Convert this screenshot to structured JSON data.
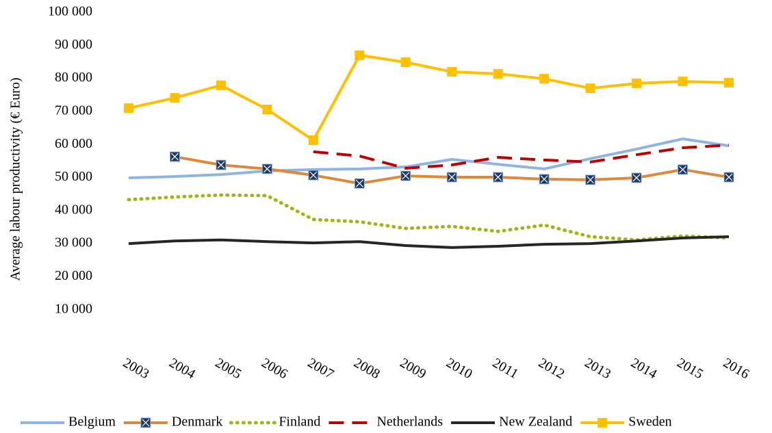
{
  "chart_data": {
    "type": "line",
    "y_label": "Average labour productivity (€ Euro)",
    "categories": [
      "2003",
      "2004",
      "2005",
      "2006",
      "2007",
      "2008",
      "2009",
      "2010",
      "2011",
      "2012",
      "2013",
      "2014",
      "2015",
      "2016"
    ],
    "ylim": [
      0,
      100000
    ],
    "yticks": [
      {
        "value": 10000,
        "label": "10 000"
      },
      {
        "value": 20000,
        "label": "20 000"
      },
      {
        "value": 30000,
        "label": "30 000"
      },
      {
        "value": 40000,
        "label": "40 000"
      },
      {
        "value": 50000,
        "label": "50 000"
      },
      {
        "value": 60000,
        "label": "60 000"
      },
      {
        "value": 70000,
        "label": "70 000"
      },
      {
        "value": 80000,
        "label": "80 000"
      },
      {
        "value": 90000,
        "label": "90 000"
      },
      {
        "value": 100000,
        "label": "100 000"
      }
    ],
    "grid": false,
    "legend": "bottom",
    "series": [
      {
        "name": "Belgium",
        "color": "#8eb4e3",
        "dash": "solid",
        "marker": "none",
        "values": [
          49900,
          50300,
          50900,
          52000,
          52400,
          52600,
          53200,
          55500,
          54000,
          52600,
          55700,
          58600,
          61700,
          59600
        ]
      },
      {
        "name": "Denmark",
        "color": "#e0883a",
        "dash": "solid",
        "marker": "square-x",
        "values": [
          null,
          56300,
          53800,
          52600,
          50700,
          48200,
          50500,
          50100,
          50100,
          49500,
          49300,
          49900,
          52400,
          50100
        ]
      },
      {
        "name": "Finland",
        "color": "#a3b514",
        "dash": "dotted",
        "marker": "none",
        "values": [
          43300,
          44100,
          44700,
          44500,
          37300,
          36600,
          34600,
          35200,
          33700,
          35600,
          32100,
          31100,
          32300,
          31700
        ]
      },
      {
        "name": "Netherlands",
        "color": "#c00000",
        "dash": "dashed",
        "marker": "none",
        "values": [
          null,
          null,
          null,
          null,
          57800,
          56500,
          52800,
          53800,
          56100,
          55300,
          54700,
          56900,
          59000,
          59800
        ]
      },
      {
        "name": "New Zealand",
        "color": "#262626",
        "dash": "solid",
        "marker": "none",
        "values": [
          30000,
          30800,
          31100,
          30600,
          30200,
          30600,
          29400,
          28800,
          29200,
          29800,
          30000,
          30800,
          31700,
          32100
        ]
      },
      {
        "name": "Sweden",
        "color": "#ffc000",
        "dash": "solid",
        "marker": "square",
        "values": [
          71000,
          74100,
          77900,
          70600,
          61300,
          87000,
          84900,
          82000,
          81400,
          79900,
          77000,
          78500,
          79100,
          78700
        ]
      }
    ]
  }
}
